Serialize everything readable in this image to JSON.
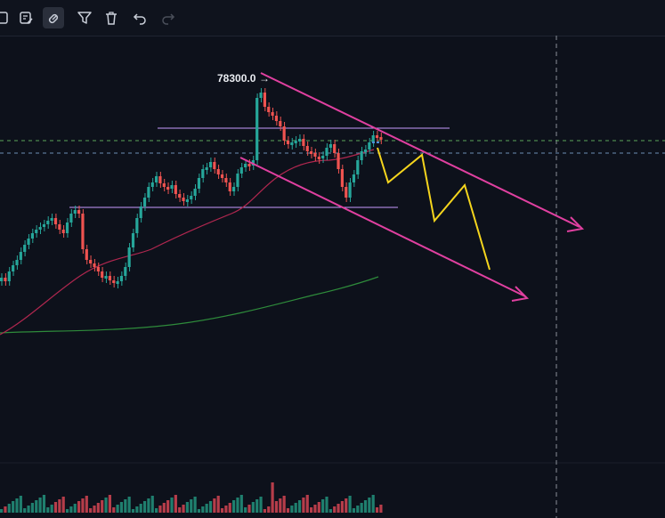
{
  "toolbar": {
    "tools": [
      {
        "name": "square-icon",
        "active": false
      },
      {
        "name": "template-edit-icon",
        "active": false
      },
      {
        "name": "magnet-icon",
        "active": true
      },
      {
        "name": "filter-icon",
        "active": false
      },
      {
        "name": "trash-icon",
        "active": false
      },
      {
        "name": "undo-icon",
        "active": false
      },
      {
        "name": "redo-icon",
        "active": false,
        "disabled": true
      }
    ]
  },
  "chart": {
    "high_label": "78300.0",
    "colors": {
      "background": "#0d111b",
      "bull": "#26a69a",
      "bear": "#ef5350",
      "channel": "#e040a0",
      "projection": "#f5d51d",
      "range_lines": "#c89cff",
      "ma_fast": "#b0274f",
      "ma_slow": "#2e8b3b",
      "dashed_green": "#5aa55a",
      "dashed_blue": "#6d8fb5",
      "crosshair": "#8a8f99"
    }
  }
}
